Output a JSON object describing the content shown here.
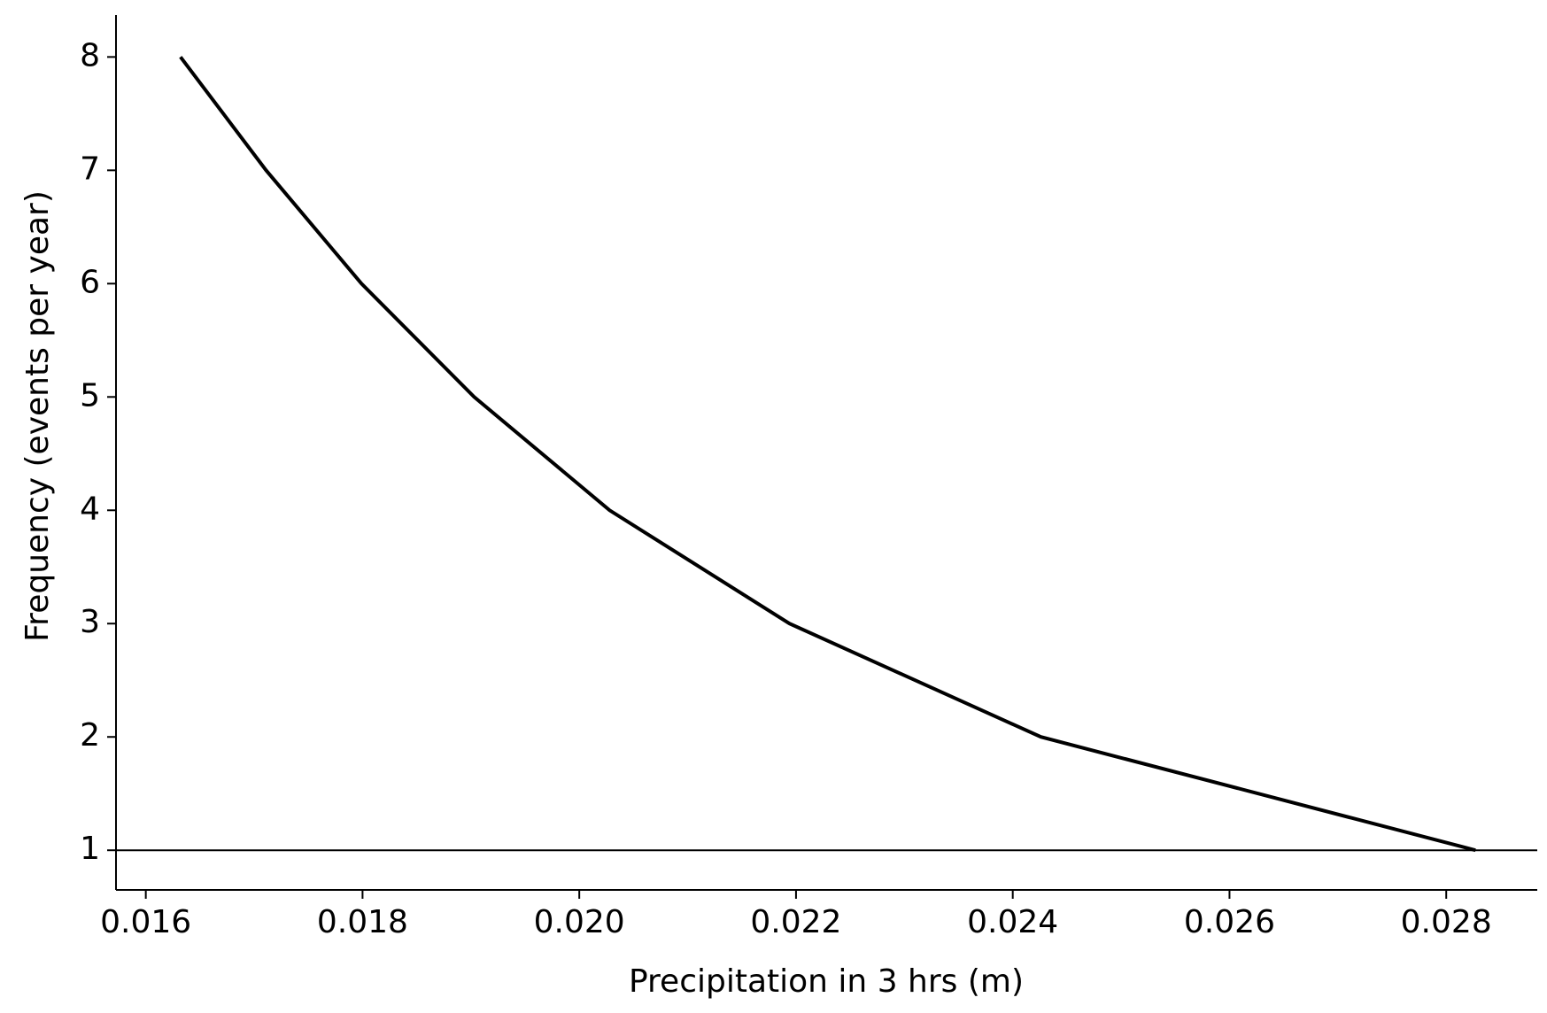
{
  "chart_data": {
    "type": "line",
    "xlabel": "Precipitation in 3 hrs (m)",
    "ylabel": "Frequency (events per year)",
    "x": [
      0.01632,
      0.01711,
      0.01799,
      0.01903,
      0.02028,
      0.02194,
      0.02426,
      0.02827
    ],
    "series": [
      {
        "color": "#000000",
        "values": [
          8,
          7,
          6,
          5,
          4,
          3,
          2,
          1
        ]
      }
    ],
    "hline": 1,
    "xlim": [
      0.015725,
      0.02884
    ],
    "ylim": [
      0.65,
      8.37
    ],
    "xticks": [
      0.016,
      0.018,
      {
        "value": 0.02,
        "label": "0.020"
      },
      0.022,
      0.024,
      0.026,
      0.028
    ],
    "yticks": [
      1,
      2,
      3,
      4,
      5,
      6,
      7,
      8
    ],
    "grid": false
  }
}
